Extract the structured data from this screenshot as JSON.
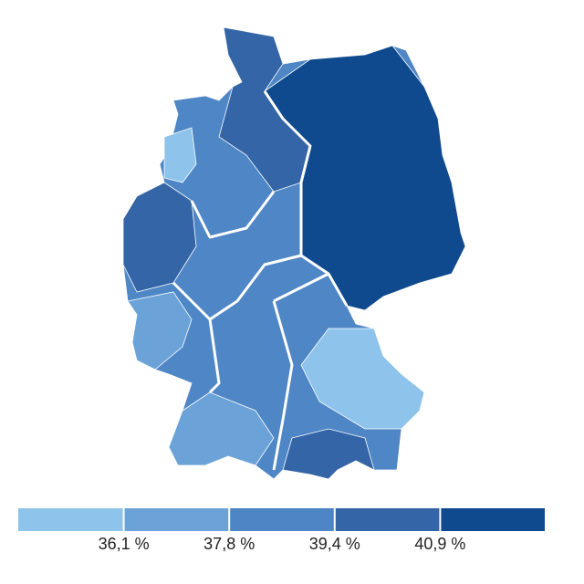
{
  "legend": {
    "colors": [
      "#8ec4eb",
      "#6ba3d9",
      "#4e85c5",
      "#3465a6",
      "#0e4a8d"
    ],
    "thresholds": [
      {
        "value": 36.1,
        "label": "36,1 %"
      },
      {
        "value": 37.8,
        "label": "37,8 %"
      },
      {
        "value": 39.4,
        "label": "39,4 %"
      },
      {
        "value": 40.9,
        "label": "40,9 %"
      }
    ]
  }
}
